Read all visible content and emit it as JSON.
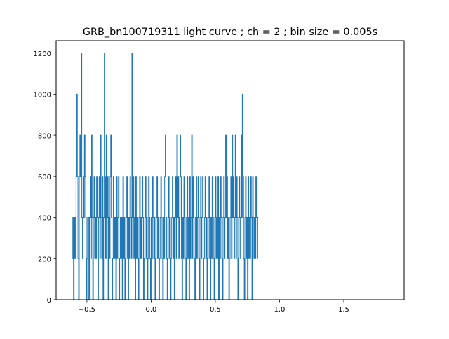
{
  "chart_data": {
    "type": "line",
    "drawstyle": "steps",
    "title": "GRB_bn100719311 light curve ; ch = 2 ; bin size = 0.005s",
    "xlabel": "",
    "ylabel": "",
    "xlim": [
      -0.74,
      1.97
    ],
    "ylim": [
      0,
      1260
    ],
    "grid": false,
    "legend": "none",
    "line_color": "#1f77b4",
    "xticks": [
      {
        "value": -0.5,
        "label": "−0.5"
      },
      {
        "value": 0.0,
        "label": "0.0"
      },
      {
        "value": 0.5,
        "label": "0.5"
      },
      {
        "value": 1.0,
        "label": "1.0"
      },
      {
        "value": 1.5,
        "label": "1.5"
      }
    ],
    "yticks": [
      {
        "value": 0,
        "label": "0"
      },
      {
        "value": 200,
        "label": "200"
      },
      {
        "value": 400,
        "label": "400"
      },
      {
        "value": 600,
        "label": "600"
      },
      {
        "value": 800,
        "label": "800"
      },
      {
        "value": 1000,
        "label": "1000"
      },
      {
        "value": 1200,
        "label": "1200"
      }
    ],
    "series": [
      {
        "x_start": -0.615,
        "bin_width": 0.005,
        "values": [
          200,
          400,
          0,
          400,
          200,
          400,
          600,
          1000,
          600,
          200,
          0,
          600,
          800,
          600,
          1200,
          400,
          200,
          600,
          400,
          800,
          600,
          400,
          0,
          200,
          400,
          400,
          0,
          400,
          600,
          200,
          800,
          400,
          0,
          400,
          600,
          200,
          400,
          200,
          600,
          400,
          0,
          400,
          600,
          200,
          800,
          400,
          200,
          600,
          0,
          400,
          1200,
          600,
          200,
          800,
          400,
          600,
          0,
          400,
          200,
          600,
          800,
          400,
          0,
          200,
          600,
          400,
          200,
          400,
          0,
          600,
          200,
          400,
          600,
          0,
          200,
          400,
          200,
          400,
          0,
          600,
          200,
          400,
          0,
          200,
          400,
          600,
          200,
          0,
          400,
          200,
          600,
          400,
          200,
          1200,
          400,
          600,
          200,
          400,
          0,
          600,
          200,
          400,
          200,
          0,
          400,
          600,
          200,
          400,
          200,
          600,
          400,
          0,
          200,
          400,
          600,
          200,
          400,
          0,
          200,
          600,
          400,
          200,
          0,
          400,
          200,
          600,
          400,
          200,
          400,
          0,
          200,
          400,
          600,
          200,
          400,
          0,
          200,
          400,
          600,
          400,
          200,
          0,
          400,
          200,
          600,
          800,
          400,
          200,
          0,
          400,
          600,
          200,
          400,
          0,
          200,
          400,
          600,
          200,
          400,
          0,
          400,
          600,
          200,
          800,
          400,
          600,
          200,
          400,
          800,
          600,
          200,
          0,
          400,
          200,
          600,
          400,
          200,
          0,
          400,
          600,
          200,
          400,
          0,
          600,
          200,
          400,
          800,
          200,
          600,
          400,
          200,
          0,
          400,
          600,
          200,
          400,
          600,
          200,
          0,
          400,
          600,
          200,
          400,
          600,
          0,
          200,
          400,
          600,
          200,
          400,
          0,
          200,
          400,
          600,
          200,
          0,
          400,
          200,
          600,
          400,
          200,
          0,
          400,
          600,
          200,
          400,
          200,
          600,
          0,
          400,
          200,
          600,
          400,
          200,
          0,
          400,
          600,
          200,
          400,
          800,
          400,
          600,
          200,
          400,
          0,
          200,
          400,
          600,
          200,
          800,
          400,
          600,
          200,
          400,
          800,
          200,
          600,
          400,
          0,
          200,
          600,
          400,
          200,
          800,
          400,
          1000,
          600,
          200,
          0,
          400,
          600,
          200,
          400,
          0,
          600,
          200,
          400,
          200,
          600,
          400,
          0,
          600,
          400,
          200,
          400,
          200,
          600,
          400,
          200,
          400
        ]
      }
    ]
  }
}
